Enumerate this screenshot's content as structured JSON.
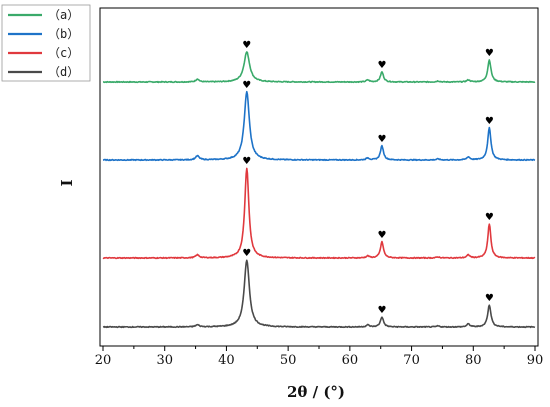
{
  "chart_data": {
    "type": "line",
    "title": "",
    "xlabel": "2θ / (°)",
    "ylabel": "I",
    "xlim": [
      20,
      90
    ],
    "xticks": [
      20,
      30,
      40,
      50,
      60,
      70,
      80,
      90
    ],
    "grid": false,
    "legend_position": "top-left",
    "peak_marker": "♥",
    "peak_positions": [
      43.3,
      65.2,
      82.6
    ],
    "series": [
      {
        "name": "（a）",
        "color": "#3aaa6a",
        "baseline": 82,
        "peaks": [
          [
            35.3,
            3,
            0.3
          ],
          [
            43.3,
            30,
            0.55
          ],
          [
            62.9,
            2,
            0.3
          ],
          [
            65.2,
            10,
            0.3
          ],
          [
            74.3,
            1,
            0.3
          ],
          [
            79.2,
            2,
            0.3
          ],
          [
            82.6,
            22,
            0.32
          ]
        ]
      },
      {
        "name": "（b）",
        "color": "#1e73c8",
        "baseline": 160,
        "peaks": [
          [
            35.3,
            4,
            0.35
          ],
          [
            43.3,
            68,
            0.5
          ],
          [
            62.9,
            2,
            0.3
          ],
          [
            65.2,
            14,
            0.3
          ],
          [
            74.3,
            1,
            0.3
          ],
          [
            79.2,
            3,
            0.3
          ],
          [
            82.6,
            32,
            0.32
          ]
        ]
      },
      {
        "name": "（c）",
        "color": "#e0393e",
        "baseline": 258,
        "peaks": [
          [
            35.3,
            3,
            0.35
          ],
          [
            43.3,
            90,
            0.4
          ],
          [
            62.9,
            2,
            0.3
          ],
          [
            65.2,
            16,
            0.3
          ],
          [
            74.3,
            1,
            0.3
          ],
          [
            79.2,
            3,
            0.3
          ],
          [
            82.6,
            34,
            0.3
          ]
        ]
      },
      {
        "name": "（d）",
        "color": "#4a4a4a",
        "baseline": 327,
        "peaks": [
          [
            35.3,
            2,
            0.35
          ],
          [
            43.3,
            67,
            0.5
          ],
          [
            62.9,
            2,
            0.3
          ],
          [
            65.2,
            10,
            0.3
          ],
          [
            74.3,
            1,
            0.3
          ],
          [
            79.2,
            3,
            0.3
          ],
          [
            82.6,
            22,
            0.32
          ]
        ]
      }
    ]
  }
}
